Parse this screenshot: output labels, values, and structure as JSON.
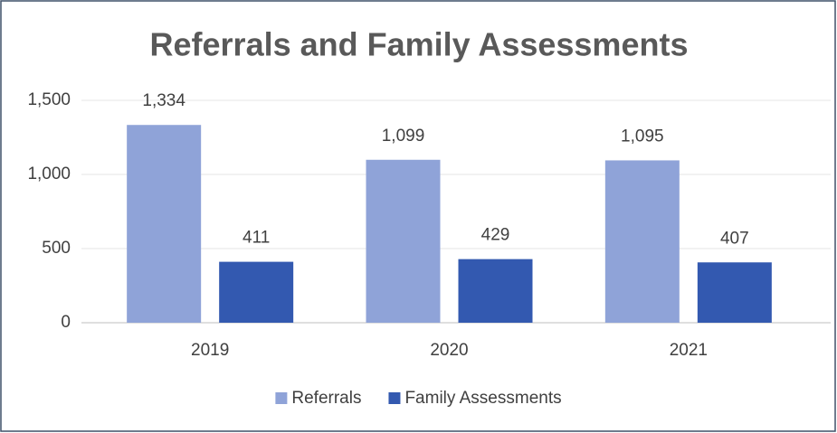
{
  "chart_data": {
    "type": "bar",
    "title": "Referrals and Family Assessments",
    "categories": [
      "2019",
      "2020",
      "2021"
    ],
    "series": [
      {
        "name": "Referrals",
        "color": "#8fa3d8",
        "values": [
          1334,
          1099,
          1095
        ],
        "value_labels": [
          "1,334",
          "1,099",
          "1,095"
        ]
      },
      {
        "name": "Family Assessments",
        "color": "#3359b0",
        "values": [
          411,
          429,
          407
        ],
        "value_labels": [
          "411",
          "429",
          "407"
        ]
      }
    ],
    "ylim": [
      0,
      1500
    ],
    "yticks": [
      0,
      500,
      {
        "value": 1000,
        "label": "1,000"
      },
      {
        "value": 1500,
        "label": "1,500"
      }
    ],
    "grid": true,
    "legend": "bottom"
  }
}
